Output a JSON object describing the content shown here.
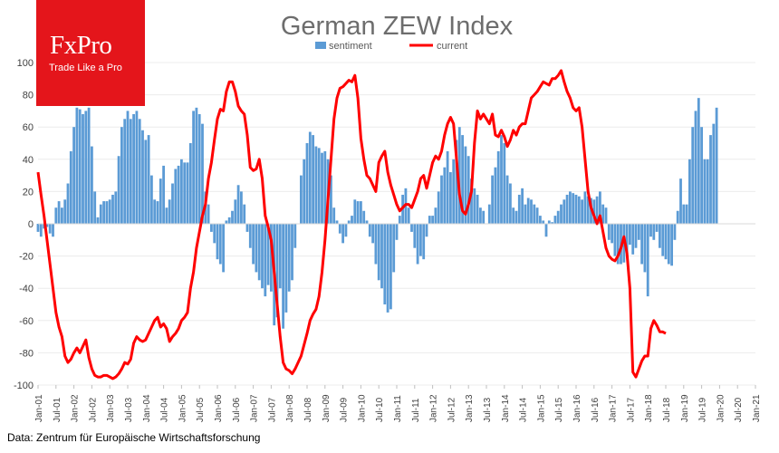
{
  "logo": {
    "name": "FxPro",
    "tagline": "Trade Like a Pro"
  },
  "source": "Data: Zentrum für Europäische Wirtschaftsforschung",
  "chart_data": {
    "type": "bar+line",
    "title": "German ZEW Index",
    "xlabel": "",
    "ylabel": "",
    "ylim": [
      -100,
      100
    ],
    "yticks": [
      -100,
      -80,
      -60,
      -40,
      -20,
      0,
      20,
      40,
      60,
      80,
      100
    ],
    "x_tick_labels": [
      "Jan-01",
      "Jul-01",
      "Jan-02",
      "Jul-02",
      "Jan-03",
      "Jul-03",
      "Jan-04",
      "Jul-04",
      "Jan-05",
      "Jul-05",
      "Jan-06",
      "Jul-06",
      "Jan-07",
      "Jul-07",
      "Jan-08",
      "Jul-08",
      "Jan-09",
      "Jul-09",
      "Jan-10",
      "Jul-10",
      "Jan-11",
      "Jul-11",
      "Jan-12",
      "Jul-12",
      "Jan-13",
      "Jul-13",
      "Jan-14",
      "Jul-14",
      "Jan-15",
      "Jul-15",
      "Jan-16",
      "Jul-16",
      "Jan-17",
      "Jul-17",
      "Jan-18",
      "Jul-18",
      "Jan-19",
      "Jul-19",
      "Jan-20",
      "Jul-20",
      "Jan-21"
    ],
    "legend": [
      {
        "name": "sentiment",
        "color": "#5b9bd5"
      },
      {
        "name": "current",
        "color": "#ff0000"
      }
    ],
    "series": [
      {
        "name": "sentiment",
        "kind": "bar",
        "color": "#5b9bd5",
        "x_start": "Jan-01",
        "frequency": "monthly",
        "values": [
          -5,
          -8,
          -3,
          -2,
          -6,
          -8,
          10,
          14,
          10,
          15,
          25,
          45,
          60,
          72,
          71,
          68,
          70,
          72,
          48,
          20,
          4,
          12,
          14,
          14,
          15,
          18,
          20,
          42,
          60,
          65,
          70,
          65,
          68,
          70,
          65,
          58,
          52,
          55,
          30,
          15,
          14,
          28,
          36,
          10,
          15,
          25,
          34,
          36,
          40,
          38,
          38,
          50,
          70,
          72,
          68,
          62,
          20,
          12,
          -5,
          -12,
          -22,
          -25,
          -30,
          2,
          4,
          8,
          15,
          24,
          20,
          12,
          -5,
          -15,
          -25,
          -30,
          -35,
          -40,
          -45,
          -38,
          -42,
          -63,
          -58,
          -40,
          -65,
          -55,
          -42,
          -35,
          -15,
          0,
          30,
          40,
          50,
          57,
          55,
          48,
          47,
          44,
          45,
          40,
          30,
          10,
          2,
          -6,
          -12,
          -8,
          2,
          5,
          15,
          14,
          14,
          8,
          2,
          -8,
          -12,
          -25,
          -35,
          -40,
          -50,
          -55,
          -53,
          -30,
          -10,
          5,
          18,
          22,
          10,
          -5,
          -15,
          -25,
          -20,
          -22,
          -8,
          5,
          5,
          10,
          20,
          30,
          35,
          45,
          32,
          40,
          52,
          60,
          55,
          48,
          42,
          28,
          22,
          18,
          10,
          8,
          0,
          12,
          30,
          35,
          45,
          55,
          50,
          30,
          25,
          10,
          8,
          18,
          22,
          12,
          16,
          15,
          12,
          10,
          5,
          2,
          -8,
          2,
          1,
          5,
          8,
          12,
          15,
          18,
          20,
          19,
          18,
          17,
          15,
          20,
          17,
          16,
          15,
          17,
          20,
          12,
          10,
          -10,
          -12,
          -20,
          -25,
          -25,
          -24,
          -18,
          -13,
          -19,
          -15,
          -10,
          -25,
          -30,
          -45,
          -8,
          -10,
          -5,
          -15,
          -20,
          -22,
          -25,
          -26,
          -10,
          8,
          28,
          12,
          12,
          40,
          60,
          70,
          78,
          60,
          40,
          40,
          55,
          62,
          72
        ]
      },
      {
        "name": "current",
        "kind": "line",
        "color": "#ff0000",
        "x_start": "Jan-01",
        "frequency": "monthly",
        "values": [
          32,
          18,
          5,
          -10,
          -25,
          -40,
          -55,
          -64,
          -70,
          -82,
          -86,
          -84,
          -80,
          -77,
          -80,
          -76,
          -72,
          -83,
          -90,
          -94,
          -95,
          -95,
          -94,
          -94,
          -95,
          -96,
          -95,
          -93,
          -90,
          -86,
          -87,
          -84,
          -74,
          -70,
          -72,
          -73,
          -72,
          -68,
          -64,
          -60,
          -58,
          -64,
          -62,
          -65,
          -73,
          -70,
          -68,
          -65,
          -60,
          -58,
          -55,
          -40,
          -30,
          -15,
          -5,
          5,
          12,
          28,
          38,
          52,
          65,
          71,
          70,
          82,
          88,
          88,
          82,
          73,
          70,
          68,
          55,
          35,
          33,
          34,
          40,
          28,
          5,
          -2,
          -10,
          -30,
          -50,
          -70,
          -86,
          -90,
          -91,
          -93,
          -90,
          -86,
          -82,
          -75,
          -68,
          -60,
          -56,
          -53,
          -45,
          -30,
          -10,
          15,
          40,
          65,
          78,
          84,
          85,
          87,
          89,
          88,
          92,
          78,
          53,
          40,
          30,
          28,
          24,
          20,
          38,
          42,
          45,
          32,
          24,
          18,
          12,
          8,
          10,
          12,
          12,
          10,
          15,
          20,
          28,
          30,
          22,
          30,
          38,
          42,
          40,
          45,
          55,
          62,
          66,
          62,
          40,
          18,
          8,
          6,
          12,
          20,
          50,
          70,
          65,
          68,
          65,
          62,
          68,
          55,
          54,
          58,
          54,
          48,
          52,
          58,
          55,
          60,
          62,
          62,
          70,
          78,
          80,
          82,
          85,
          88,
          87,
          86,
          90,
          90,
          92,
          95,
          88,
          82,
          78,
          72,
          70,
          72,
          60,
          40,
          20,
          10,
          5,
          0,
          5,
          -5,
          -15,
          -20,
          -22,
          -23,
          -20,
          -15,
          -8,
          -18,
          -40,
          -92,
          -95,
          -90,
          -85,
          -82,
          -82,
          -65,
          -60,
          -63,
          -67,
          -67,
          -68
        ]
      }
    ]
  }
}
